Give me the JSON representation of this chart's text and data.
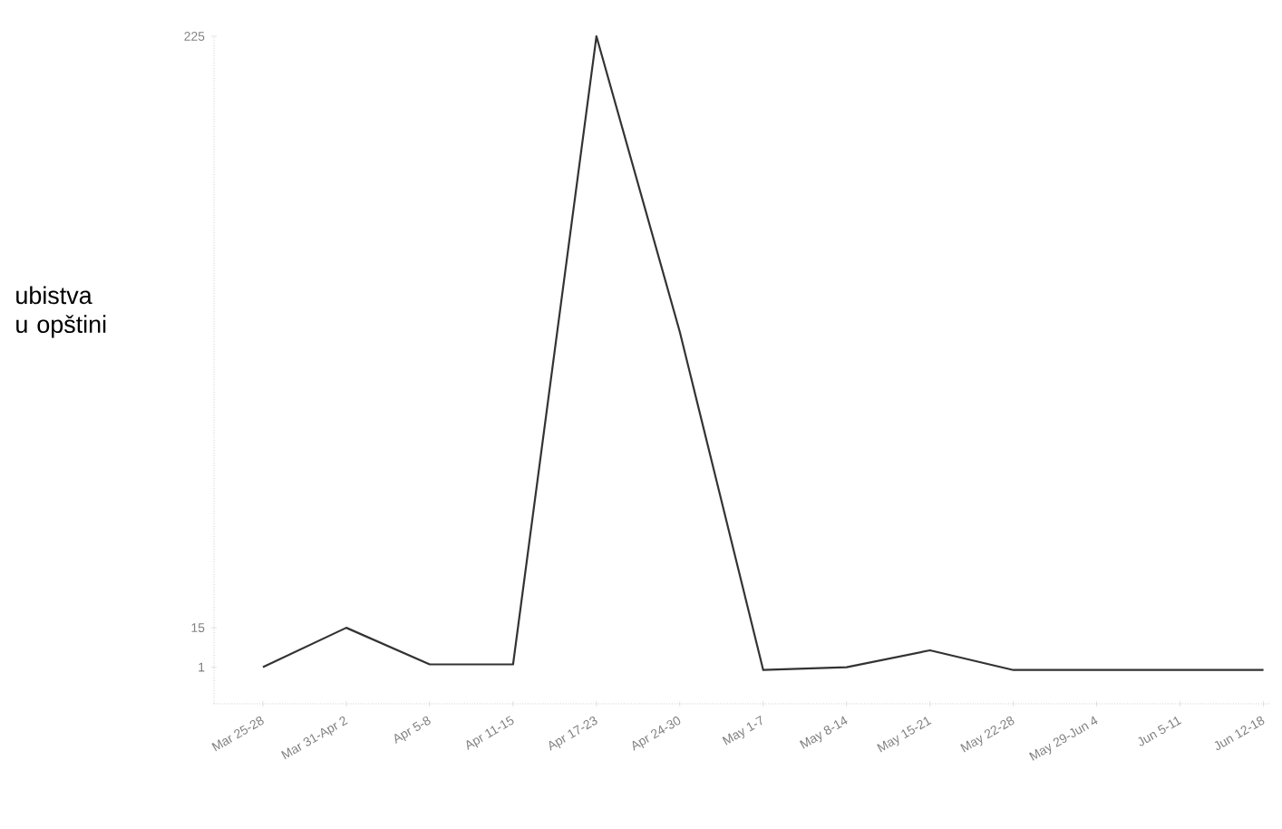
{
  "chart_data": {
    "type": "line",
    "ylabel": "ubistva u opštini",
    "categories": [
      "Mar 25-28",
      "Mar 31-Apr 2",
      "Apr 5-8",
      "Apr 11-15",
      "Apr 17-23",
      "Apr 24-30",
      "May 1-7",
      "May 8-14",
      "May 15-21",
      "May 22-28",
      "May 29-Jun 4",
      "Jun 5-11",
      "Jun 12-18"
    ],
    "values": [
      1,
      15,
      2,
      2,
      225,
      120,
      0,
      1,
      7,
      0,
      0,
      0,
      0
    ],
    "color": "#333333",
    "ylim": [
      -12,
      225
    ],
    "yticks": [
      1,
      15,
      225
    ],
    "grid": false,
    "marker": "none",
    "line_style": "solid"
  }
}
